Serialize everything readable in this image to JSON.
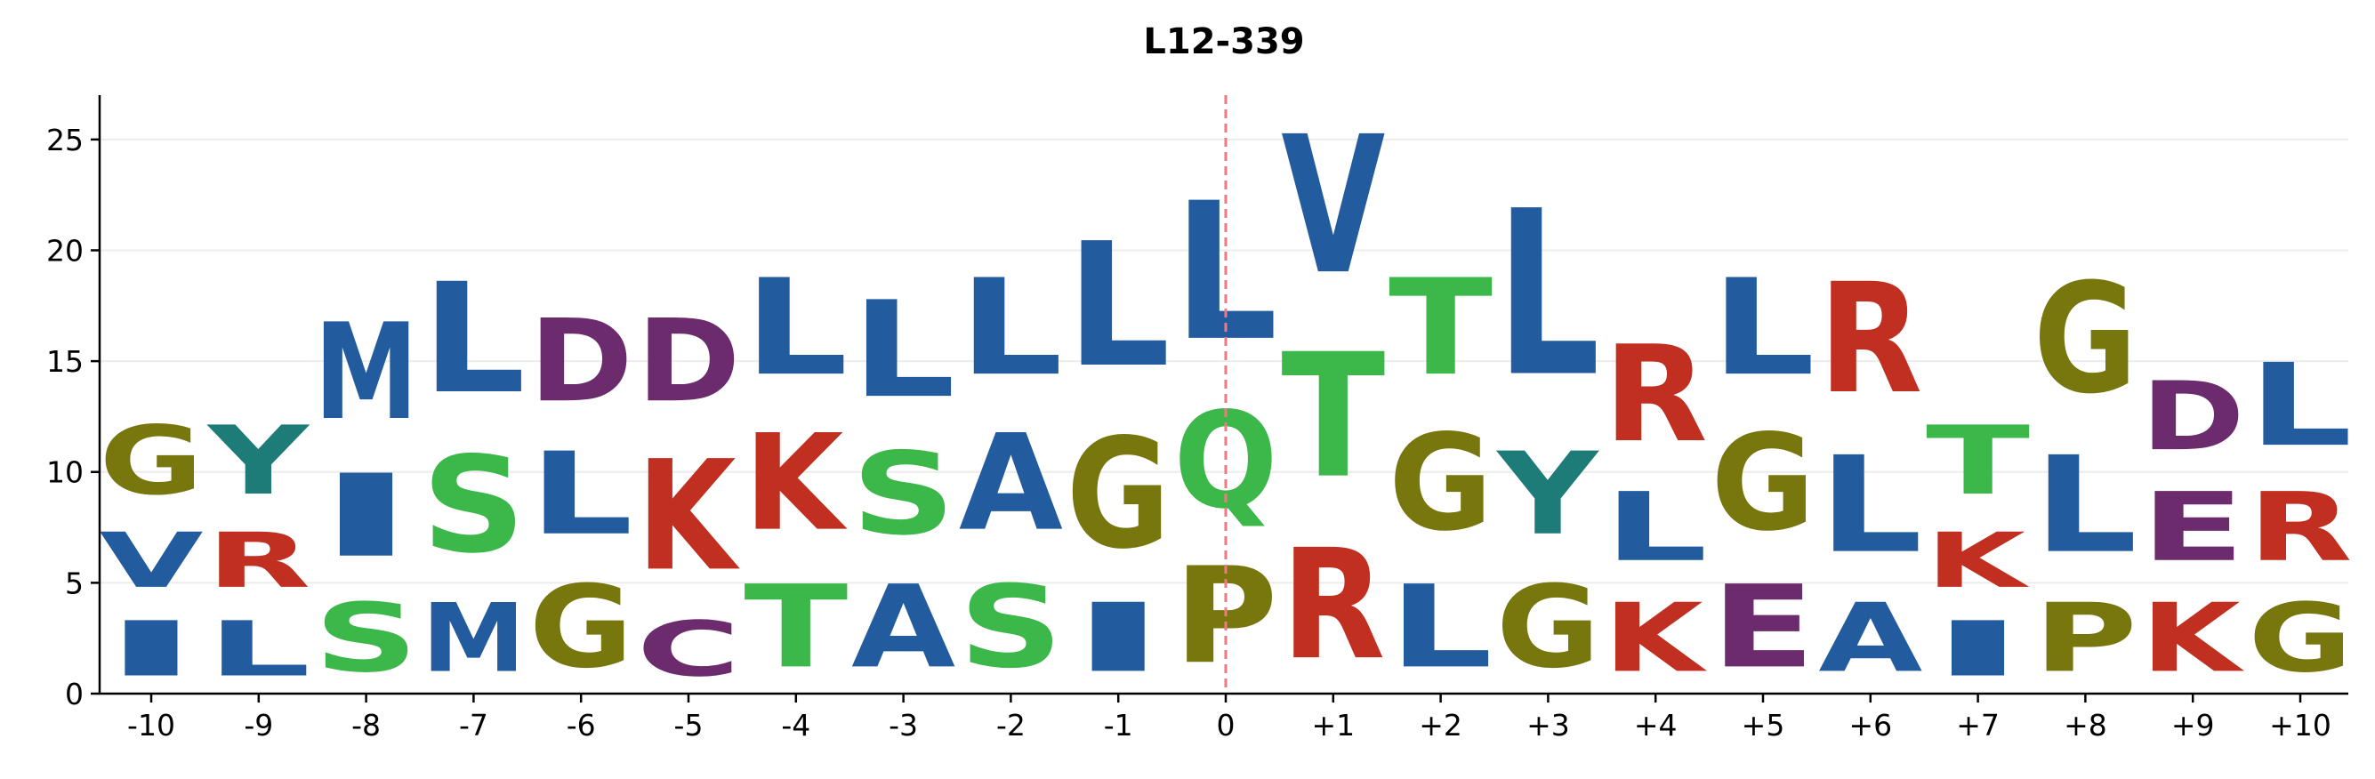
{
  "chart_data": {
    "type": "sequence-logo",
    "title": "L12-339",
    "xlabel": "",
    "ylabel": "",
    "ylim": [
      0,
      27
    ],
    "yticks": [
      0,
      5,
      10,
      15,
      20,
      25
    ],
    "grid": "horizontal",
    "reference_line_at": "0",
    "positions": [
      "-10",
      "-9",
      "-8",
      "-7",
      "-6",
      "-5",
      "-4",
      "-3",
      "-2",
      "-1",
      "0",
      "+1",
      "+2",
      "+3",
      "+4",
      "+5",
      "+6",
      "+7",
      "+8",
      "+9",
      "+10"
    ],
    "stacks": [
      [
        {
          "letter": "I",
          "height": 4
        },
        {
          "letter": "V",
          "height": 4
        },
        {
          "letter": "G",
          "height": 5
        }
      ],
      [
        {
          "letter": "L",
          "height": 4
        },
        {
          "letter": "R",
          "height": 4
        },
        {
          "letter": "Y",
          "height": 5
        }
      ],
      [
        {
          "letter": "S",
          "height": 5
        },
        {
          "letter": "I",
          "height": 6
        },
        {
          "letter": "M",
          "height": 7
        }
      ],
      [
        {
          "letter": "M",
          "height": 5
        },
        {
          "letter": "S",
          "height": 7
        },
        {
          "letter": "L",
          "height": 8
        }
      ],
      [
        {
          "letter": "G",
          "height": 6
        },
        {
          "letter": "L",
          "height": 6
        },
        {
          "letter": "D",
          "height": 6
        }
      ],
      [
        {
          "letter": "C",
          "height": 4
        },
        {
          "letter": "K",
          "height": 8
        },
        {
          "letter": "D",
          "height": 6
        }
      ],
      [
        {
          "letter": "T",
          "height": 6
        },
        {
          "letter": "K",
          "height": 7
        },
        {
          "letter": "L",
          "height": 7
        }
      ],
      [
        {
          "letter": "A",
          "height": 6
        },
        {
          "letter": "S",
          "height": 6
        },
        {
          "letter": "L",
          "height": 7
        }
      ],
      [
        {
          "letter": "S",
          "height": 6
        },
        {
          "letter": "A",
          "height": 7
        },
        {
          "letter": "L",
          "height": 7
        }
      ],
      [
        {
          "letter": "I",
          "height": 5
        },
        {
          "letter": "G",
          "height": 8
        },
        {
          "letter": "L",
          "height": 9
        }
      ],
      [
        {
          "letter": "P",
          "height": 7
        },
        {
          "letter": "Q",
          "height": 7
        },
        {
          "letter": "L",
          "height": 10
        }
      ],
      [
        {
          "letter": "R",
          "height": 8
        },
        {
          "letter": "T",
          "height": 9
        },
        {
          "letter": "V",
          "height": 10
        }
      ],
      [
        {
          "letter": "L",
          "height": 6
        },
        {
          "letter": "G",
          "height": 7
        },
        {
          "letter": "T",
          "height": 7
        }
      ],
      [
        {
          "letter": "G",
          "height": 6
        },
        {
          "letter": "Y",
          "height": 6
        },
        {
          "letter": "L",
          "height": 12
        }
      ],
      [
        {
          "letter": "K",
          "height": 5
        },
        {
          "letter": "L",
          "height": 5
        },
        {
          "letter": "R",
          "height": 7
        }
      ],
      [
        {
          "letter": "E",
          "height": 6
        },
        {
          "letter": "G",
          "height": 7
        },
        {
          "letter": "L",
          "height": 7
        }
      ],
      [
        {
          "letter": "A",
          "height": 5
        },
        {
          "letter": "L",
          "height": 7
        },
        {
          "letter": "R",
          "height": 8
        }
      ],
      [
        {
          "letter": "I",
          "height": 4
        },
        {
          "letter": "K",
          "height": 4
        },
        {
          "letter": "T",
          "height": 5
        }
      ],
      [
        {
          "letter": "P",
          "height": 5
        },
        {
          "letter": "L",
          "height": 7
        },
        {
          "letter": "G",
          "height": 8
        }
      ],
      [
        {
          "letter": "K",
          "height": 5
        },
        {
          "letter": "E",
          "height": 5
        },
        {
          "letter": "D",
          "height": 5
        }
      ],
      [
        {
          "letter": "G",
          "height": 5
        },
        {
          "letter": "R",
          "height": 5
        },
        {
          "letter": "L",
          "height": 6
        }
      ]
    ],
    "colors": {
      "A": "#235c9e",
      "I": "#235c9e",
      "L": "#235c9e",
      "M": "#235c9e",
      "V": "#235c9e",
      "F": "#235c9e",
      "W": "#235c9e",
      "S": "#3cb84a",
      "T": "#3cb84a",
      "G": "#77770e",
      "P": "#77770e",
      "K": "#c12f20",
      "R": "#c12f20",
      "D": "#6b2b6c",
      "E": "#6b2b6c",
      "C": "#6b2b6c",
      "Q": "#3cb84a",
      "N": "#3cb84a",
      "Y": "#1d7b78",
      "H": "#1d7b78"
    },
    "reference_line_color": "#f07882"
  }
}
